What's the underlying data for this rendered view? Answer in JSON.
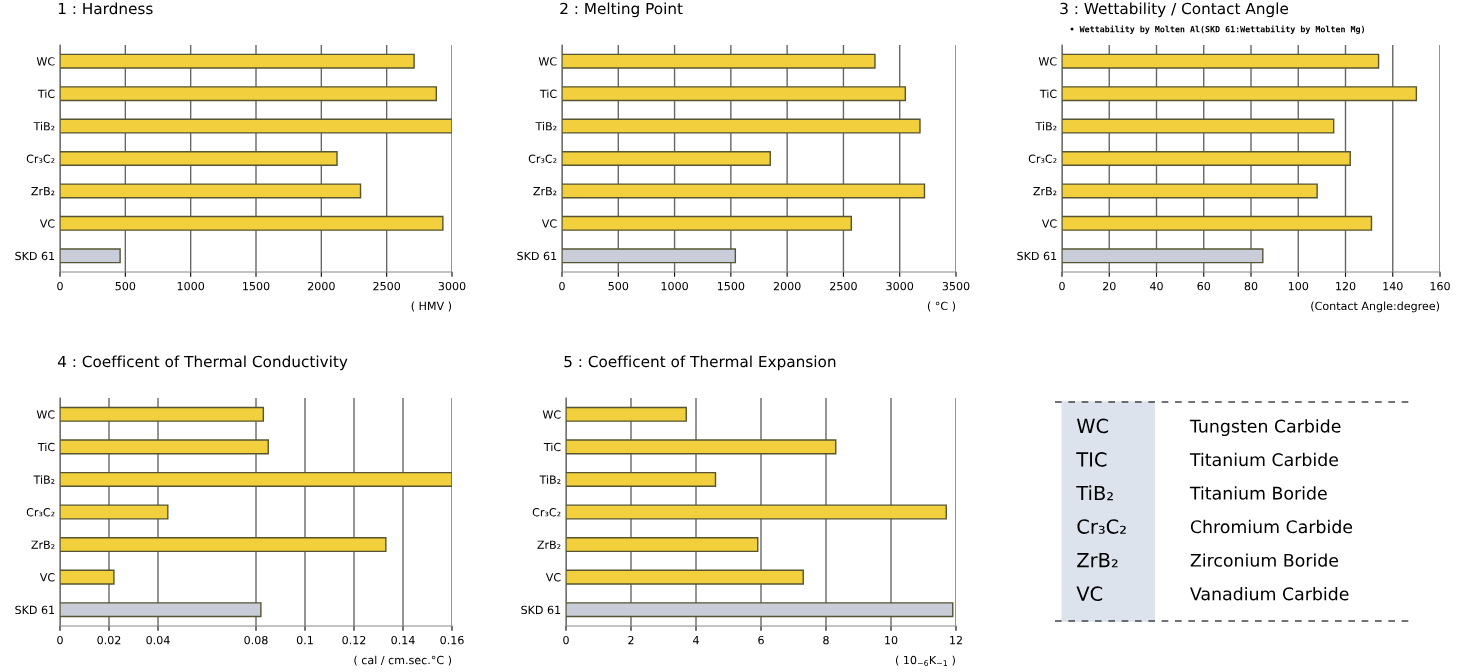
{
  "chart_data": [
    {
      "type": "bar",
      "orientation": "horizontal",
      "title": "1 : Hardness",
      "xlabel": "( HMV )",
      "categories": [
        "WC",
        "TiC",
        "TiB₂",
        "Cr₃C₂",
        "ZrB₂",
        "VC",
        "SKD 61"
      ],
      "values": [
        2710,
        2880,
        3000,
        2120,
        2300,
        2930,
        460
      ],
      "colors": [
        "#f2cf3c",
        "#f2cf3c",
        "#f2cf3c",
        "#f2cf3c",
        "#f2cf3c",
        "#f2cf3c",
        "#c9cdd9"
      ],
      "xlim": [
        0,
        3000
      ],
      "xticks": [
        0,
        500,
        1000,
        1500,
        2000,
        2500,
        3000
      ],
      "grid": "x"
    },
    {
      "type": "bar",
      "orientation": "horizontal",
      "title": "2 : Melting Point",
      "xlabel": "( °C )",
      "categories": [
        "WC",
        "TiC",
        "TiB₂",
        "Cr₃C₂",
        "ZrB₂",
        "VC",
        "SKD 61"
      ],
      "values": [
        2780,
        3050,
        3180,
        1850,
        3220,
        2570,
        1540
      ],
      "colors": [
        "#f2cf3c",
        "#f2cf3c",
        "#f2cf3c",
        "#f2cf3c",
        "#f2cf3c",
        "#f2cf3c",
        "#c9cdd9"
      ],
      "xlim": [
        0,
        3500
      ],
      "xticks": [
        0,
        500,
        1000,
        1500,
        2000,
        2500,
        3000,
        3500
      ],
      "grid": "x"
    },
    {
      "type": "bar",
      "orientation": "horizontal",
      "title": "3 : Wettability / Contact Angle",
      "subtitle": "• Wettability by Molten Al(SKD 61:Wettability by Molten Mg)",
      "xlabel": "(Contact Angle:degree)",
      "categories": [
        "WC",
        "TiC",
        "TiB₂",
        "Cr₃C₂",
        "ZrB₂",
        "VC",
        "SKD 61"
      ],
      "values": [
        134,
        150,
        115,
        122,
        108,
        131,
        85
      ],
      "colors": [
        "#f2cf3c",
        "#f2cf3c",
        "#f2cf3c",
        "#f2cf3c",
        "#f2cf3c",
        "#f2cf3c",
        "#c9cdd9"
      ],
      "xlim": [
        0,
        160
      ],
      "xticks": [
        0,
        20,
        40,
        60,
        80,
        100,
        120,
        140,
        160
      ],
      "grid": "x"
    },
    {
      "type": "bar",
      "orientation": "horizontal",
      "title": "4 : Coefficent of Thermal Conductivity",
      "xlabel": "( cal / cm.sec.°C )",
      "categories": [
        "WC",
        "TiC",
        "TiB₂",
        "Cr₃C₂",
        "ZrB₂",
        "VC",
        "SKD 61"
      ],
      "values": [
        0.083,
        0.085,
        0.16,
        0.044,
        0.133,
        0.022,
        0.082
      ],
      "colors": [
        "#f2cf3c",
        "#f2cf3c",
        "#f2cf3c",
        "#f2cf3c",
        "#f2cf3c",
        "#f2cf3c",
        "#c9cdd9"
      ],
      "xlim": [
        0,
        0.16
      ],
      "xticks": [
        0,
        0.02,
        0.04,
        0.08,
        0.1,
        0.12,
        0.14,
        0.16
      ],
      "grid": "x"
    },
    {
      "type": "bar",
      "orientation": "horizontal",
      "title": "5 : Coefficent of Thermal Expansion",
      "xlabel": "( 10$_{−6}$K$_{−1}$ )",
      "categories": [
        "WC",
        "TiC",
        "TiB₂",
        "Cr₃C₂",
        "ZrB₂",
        "VC",
        "SKD 61"
      ],
      "values": [
        3.7,
        8.3,
        4.6,
        11.7,
        5.9,
        7.3,
        11.9
      ],
      "colors": [
        "#f2cf3c",
        "#f2cf3c",
        "#f2cf3c",
        "#f2cf3c",
        "#f2cf3c",
        "#f2cf3c",
        "#c9cdd9"
      ],
      "xlim": [
        0,
        12
      ],
      "xticks": [
        0,
        2,
        4,
        6,
        8,
        10,
        12
      ],
      "grid": "x"
    },
    {
      "type": "other",
      "categories": [
        "WC",
        "TIC",
        "TiB₂",
        "Cr₃C₂",
        "ZrB₂",
        "VC"
      ],
      "annotations": [
        "Tungsten Carbide",
        "Titanium Carbide",
        "Titanium Boride",
        "Chromium Carbide",
        "Zirconium Boride",
        "Vanadium Carbide"
      ]
    }
  ]
}
